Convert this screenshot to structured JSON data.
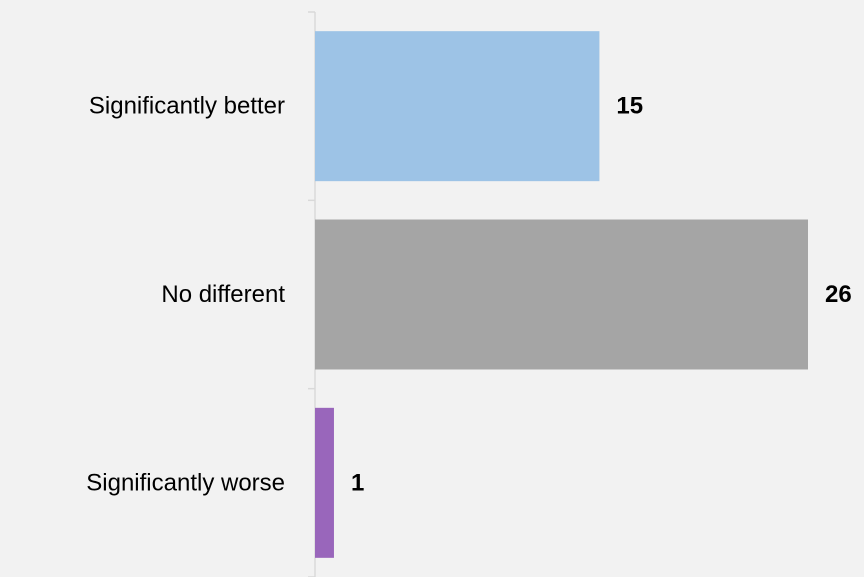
{
  "chart_data": {
    "type": "bar",
    "orientation": "horizontal",
    "categories": [
      "Significantly better",
      "No different",
      "Significantly worse"
    ],
    "values": [
      15,
      26,
      1
    ],
    "colors": [
      "#9dc3e6",
      "#a5a5a5",
      "#9966bb"
    ],
    "data_labels": [
      "15",
      "26",
      "1"
    ],
    "xlim": [
      0,
      26
    ],
    "grid": false,
    "legend": "none"
  }
}
